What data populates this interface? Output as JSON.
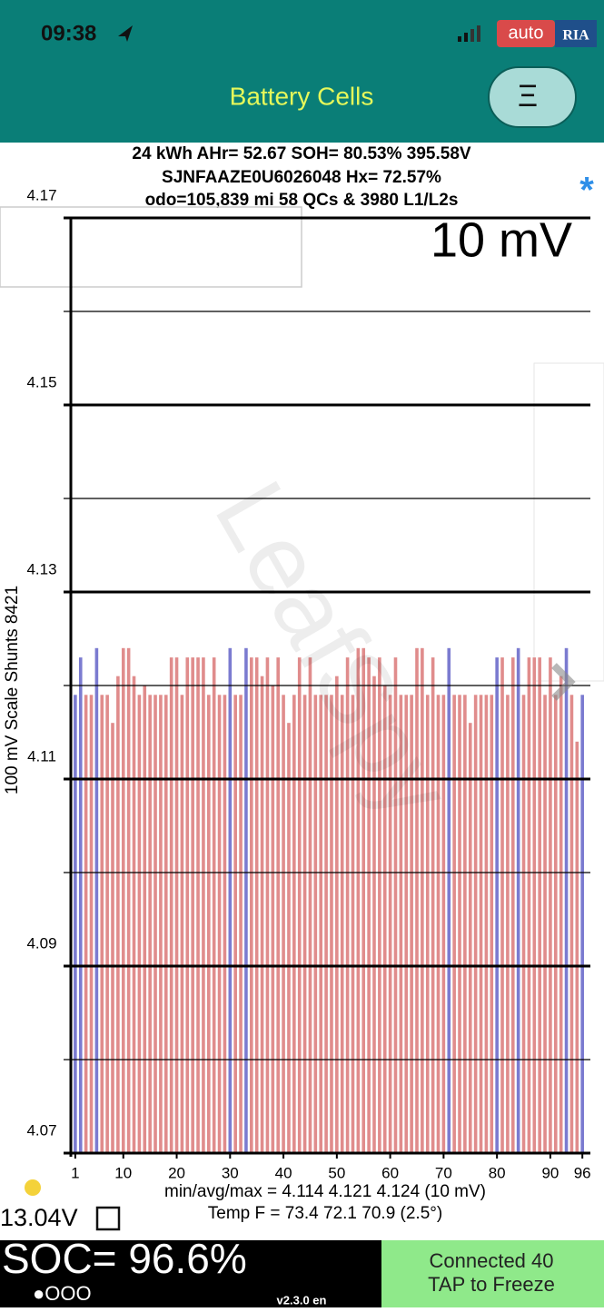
{
  "status_bar": {
    "time": "09:38"
  },
  "header": {
    "title": "Battery Cells",
    "menu_icon": "Ξ"
  },
  "badge": {
    "left": "auto",
    "right": "RIA"
  },
  "info": {
    "line1": "24 kWh  AHr= 52.67  SOH= 80.53%   395.58V",
    "line2": "SJNFAAZE0U6026048    Hx= 72.57%",
    "line3": "odo=105,839 mi 58 QCs & 3980 L1/L2s",
    "asterisk": "*"
  },
  "chart_data": {
    "type": "bar",
    "scale_label": "10 mV",
    "ylabel": "100 mV Scale   Shunts 8421",
    "watermark": "LeafSpy",
    "x": [
      1,
      2,
      3,
      4,
      5,
      6,
      7,
      8,
      9,
      10,
      11,
      12,
      13,
      14,
      15,
      16,
      17,
      18,
      19,
      20,
      21,
      22,
      23,
      24,
      25,
      26,
      27,
      28,
      29,
      30,
      31,
      32,
      33,
      34,
      35,
      36,
      37,
      38,
      39,
      40,
      41,
      42,
      43,
      44,
      45,
      46,
      47,
      48,
      49,
      50,
      51,
      52,
      53,
      54,
      55,
      56,
      57,
      58,
      59,
      60,
      61,
      62,
      63,
      64,
      65,
      66,
      67,
      68,
      69,
      70,
      71,
      72,
      73,
      74,
      75,
      76,
      77,
      78,
      79,
      80,
      81,
      82,
      83,
      84,
      85,
      86,
      87,
      88,
      89,
      90,
      91,
      92,
      93,
      94,
      95,
      96
    ],
    "values": [
      4.119,
      4.123,
      4.119,
      4.119,
      4.124,
      4.119,
      4.119,
      4.116,
      4.121,
      4.124,
      4.124,
      4.121,
      4.119,
      4.12,
      4.119,
      4.119,
      4.119,
      4.119,
      4.123,
      4.123,
      4.119,
      4.123,
      4.123,
      4.123,
      4.123,
      4.119,
      4.123,
      4.119,
      4.119,
      4.124,
      4.119,
      4.119,
      4.124,
      4.123,
      4.123,
      4.121,
      4.123,
      4.12,
      4.123,
      4.119,
      4.116,
      4.119,
      4.123,
      4.119,
      4.123,
      4.119,
      4.119,
      4.119,
      4.119,
      4.121,
      4.119,
      4.123,
      4.119,
      4.124,
      4.124,
      4.123,
      4.121,
      4.123,
      4.12,
      4.119,
      4.123,
      4.119,
      4.119,
      4.119,
      4.124,
      4.124,
      4.119,
      4.123,
      4.119,
      4.119,
      4.124,
      4.119,
      4.119,
      4.119,
      4.116,
      4.119,
      4.119,
      4.119,
      4.119,
      4.123,
      4.123,
      4.119,
      4.123,
      4.124,
      4.119,
      4.123,
      4.123,
      4.123,
      4.119,
      4.123,
      4.119,
      4.121,
      4.124,
      4.119,
      4.114,
      4.119
    ],
    "colors": [
      "#7b7bd0",
      "#7b7bd0",
      "#e08c8c",
      "#e08c8c",
      "#7b7bd0",
      "#e08c8c",
      "#e08c8c",
      "#e08c8c",
      "#e08c8c",
      "#e08c8c",
      "#e08c8c",
      "#e08c8c",
      "#e08c8c",
      "#e08c8c",
      "#e08c8c",
      "#e08c8c",
      "#e08c8c",
      "#e08c8c",
      "#e08c8c",
      "#e08c8c",
      "#e08c8c",
      "#e08c8c",
      "#e08c8c",
      "#e08c8c",
      "#e08c8c",
      "#e08c8c",
      "#e08c8c",
      "#e08c8c",
      "#e08c8c",
      "#7b7bd0",
      "#e08c8c",
      "#e08c8c",
      "#7b7bd0",
      "#e08c8c",
      "#e08c8c",
      "#e08c8c",
      "#e08c8c",
      "#e08c8c",
      "#e08c8c",
      "#e08c8c",
      "#e08c8c",
      "#e08c8c",
      "#e08c8c",
      "#e08c8c",
      "#e08c8c",
      "#e08c8c",
      "#e08c8c",
      "#e08c8c",
      "#e08c8c",
      "#e08c8c",
      "#e08c8c",
      "#e08c8c",
      "#e08c8c",
      "#e08c8c",
      "#e08c8c",
      "#e08c8c",
      "#e08c8c",
      "#e08c8c",
      "#e08c8c",
      "#e08c8c",
      "#e08c8c",
      "#e08c8c",
      "#e08c8c",
      "#e08c8c",
      "#e08c8c",
      "#e08c8c",
      "#e08c8c",
      "#e08c8c",
      "#e08c8c",
      "#e08c8c",
      "#7b7bd0",
      "#e08c8c",
      "#e08c8c",
      "#e08c8c",
      "#e08c8c",
      "#e08c8c",
      "#e08c8c",
      "#e08c8c",
      "#e08c8c",
      "#7b7bd0",
      "#e08c8c",
      "#e08c8c",
      "#e08c8c",
      "#7b7bd0",
      "#e08c8c",
      "#e08c8c",
      "#e08c8c",
      "#e08c8c",
      "#e08c8c",
      "#e08c8c",
      "#e08c8c",
      "#e08c8c",
      "#7b7bd0",
      "#e08c8c",
      "#e08c8c",
      "#7b7bd0"
    ],
    "xlim": [
      0,
      97.5
    ],
    "xticks": [
      1,
      10,
      20,
      30,
      40,
      50,
      60,
      70,
      80,
      90,
      96
    ],
    "ylim": [
      4.07,
      4.17
    ],
    "yticks": [
      4.07,
      4.09,
      4.11,
      4.13,
      4.15,
      4.17
    ],
    "minor_yticks": [
      4.08,
      4.1,
      4.12,
      4.14,
      4.16
    ],
    "grid": true
  },
  "stats": {
    "line1": "min/avg/max = 4.114 4.121 4.124  (10 mV)",
    "line2": "Temp F = 73.4  72.1  70.9  (2.5°)",
    "voltage": "13.04V"
  },
  "footer": {
    "soc": "SOC= 96.6%",
    "dots": "●OOO",
    "version": "v2.3.0 en",
    "status1": "Connected 40",
    "status2": "TAP to Freeze"
  }
}
